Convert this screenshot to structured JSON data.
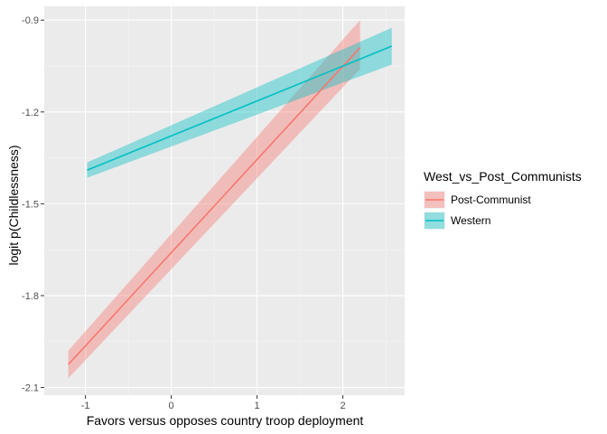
{
  "chart_data": {
    "type": "line",
    "xlabel": "Favors versus opposes country troop deployment",
    "ylabel": "logit p(Childlessness)",
    "xlim": [
      -1.48,
      2.72
    ],
    "ylim": [
      -2.125,
      -0.855
    ],
    "x_ticks": [
      -1,
      0,
      1,
      2
    ],
    "x_tick_labels": [
      "-1",
      "0",
      "1",
      "2"
    ],
    "y_ticks": [
      -2.1,
      -1.8,
      -1.5,
      -1.2,
      -0.9
    ],
    "y_tick_labels": [
      "-2.1",
      "-1.8",
      "-1.5",
      "-1.2",
      "-0.9"
    ],
    "grid": true,
    "panel_background": "#ebebeb",
    "legend": {
      "title": "West_vs_Post_Communists",
      "position": "right"
    },
    "series": [
      {
        "name": "Post-Communist",
        "color": "#f8766d",
        "x": [
          -1.2,
          2.2
        ],
        "y": [
          -2.025,
          -0.99
        ],
        "lower": [
          -2.07,
          -1.06
        ],
        "upper": [
          -1.98,
          -0.9
        ]
      },
      {
        "name": "Western",
        "color": "#00bfc4",
        "x": [
          -0.98,
          2.57
        ],
        "y": [
          -1.39,
          -0.985
        ],
        "lower": [
          -1.415,
          -1.045
        ],
        "upper": [
          -1.365,
          -0.925
        ]
      }
    ]
  }
}
